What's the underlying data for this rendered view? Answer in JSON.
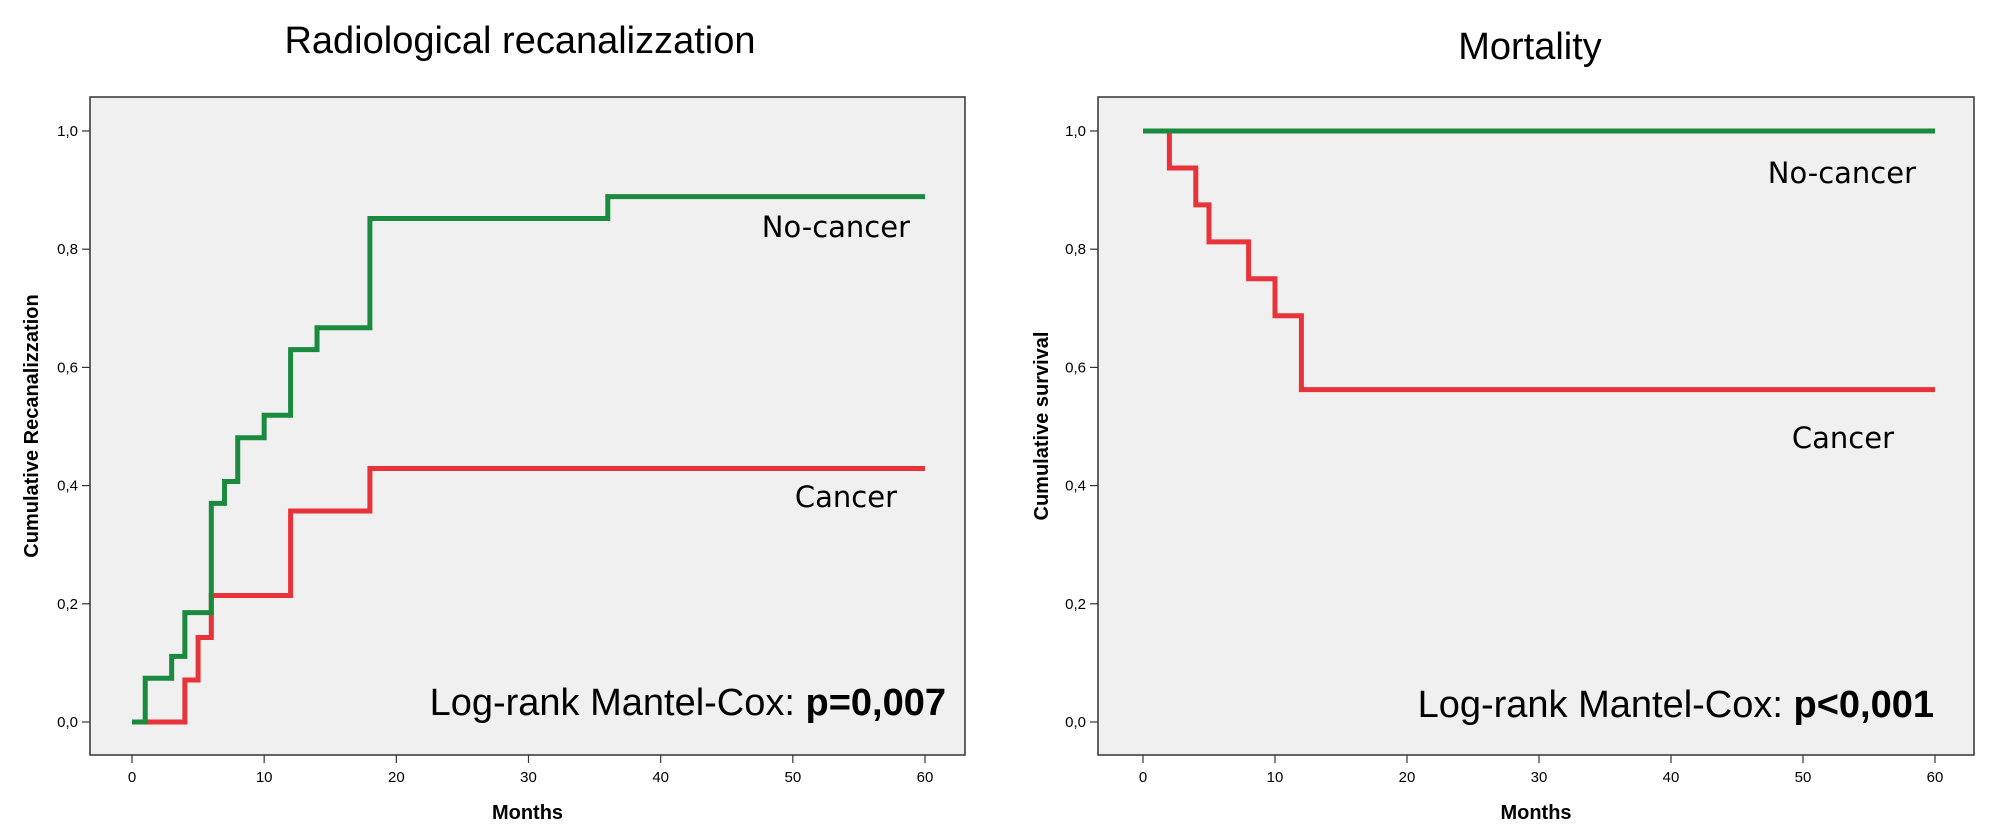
{
  "chart_data": [
    {
      "type": "line",
      "step": true,
      "title": "Radiological recanalizzation",
      "xlabel": "Months",
      "ylabel": "Cumulative Recanalizzation",
      "xlim": [
        0,
        60
      ],
      "ylim": [
        0,
        1
      ],
      "xticks": [
        "0",
        "10",
        "20",
        "30",
        "40",
        "50",
        "60"
      ],
      "yticks": [
        "0,0",
        "0,2",
        "0,4",
        "0,6",
        "0,8",
        "1,0"
      ],
      "grid": false,
      "series": [
        {
          "name": "No-cancer",
          "color": "#1a8a3e",
          "points": [
            [
              0,
              0
            ],
            [
              1,
              0.074
            ],
            [
              3,
              0.111
            ],
            [
              4,
              0.185
            ],
            [
              6,
              0.37
            ],
            [
              7,
              0.407
            ],
            [
              8,
              0.481
            ],
            [
              10,
              0.519
            ],
            [
              12,
              0.63
            ],
            [
              14,
              0.667
            ],
            [
              18,
              0.852
            ],
            [
              36,
              0.889
            ],
            [
              60,
              0.889
            ]
          ]
        },
        {
          "name": "Cancer",
          "color": "#e8333a",
          "points": [
            [
              0,
              0
            ],
            [
              4,
              0.071
            ],
            [
              5,
              0.143
            ],
            [
              6,
              0.214
            ],
            [
              12,
              0.357
            ],
            [
              18,
              0.429
            ],
            [
              60,
              0.429
            ]
          ]
        }
      ],
      "annotation": {
        "prefix": "Log-rank Mantel-Cox: ",
        "value": "p=0,007"
      }
    },
    {
      "type": "line",
      "step": true,
      "title": "Mortality",
      "xlabel": "Months",
      "ylabel": "Cumulative survival",
      "xlim": [
        0,
        60
      ],
      "ylim": [
        0,
        1
      ],
      "xticks": [
        "0",
        "10",
        "20",
        "30",
        "40",
        "50",
        "60"
      ],
      "yticks": [
        "0,0",
        "0,2",
        "0,4",
        "0,6",
        "0,8",
        "1,0"
      ],
      "grid": false,
      "series": [
        {
          "name": "No-cancer",
          "color": "#1a8a3e",
          "points": [
            [
              0,
              1.0
            ],
            [
              60,
              1.0
            ]
          ]
        },
        {
          "name": "Cancer",
          "color": "#e8333a",
          "points": [
            [
              0,
              1.0
            ],
            [
              2,
              0.9375
            ],
            [
              4,
              0.875
            ],
            [
              5,
              0.8125
            ],
            [
              8,
              0.75
            ],
            [
              10,
              0.6875
            ],
            [
              12,
              0.5625
            ],
            [
              60,
              0.5625
            ]
          ]
        }
      ],
      "annotation": {
        "prefix": "Log-rank Mantel-Cox: ",
        "value": "p<0,001"
      }
    }
  ]
}
